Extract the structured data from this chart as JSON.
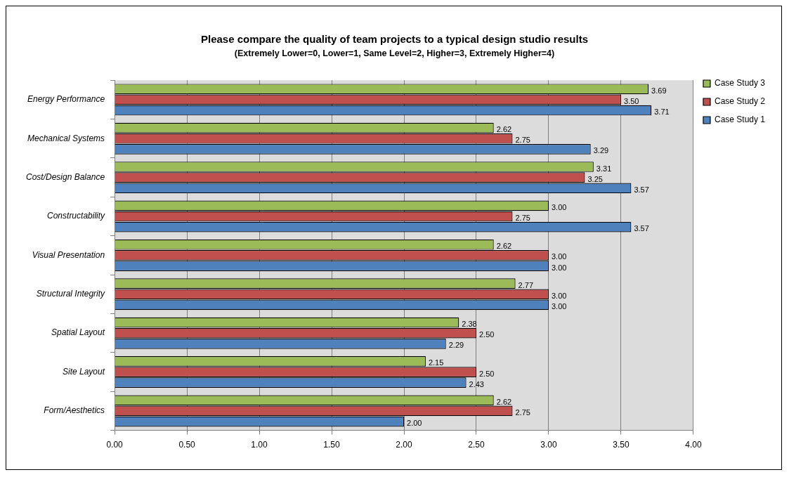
{
  "chart_data": {
    "type": "bar",
    "orientation": "horizontal",
    "title": "Please compare the quality of team projects to a typical design studio results",
    "subtitle": "(Extremely Lower=0, Lower=1, Same Level=2, Higher=3, Extremely Higher=4)",
    "categories": [
      "Energy Performance",
      "Mechanical Systems",
      "Cost/Design Balance",
      "Constructability",
      "Visual Presentation",
      "Structural Integrity",
      "Spatial Layout",
      "Site Layout",
      "Form/Aesthetics"
    ],
    "series": [
      {
        "name": "Case Study 3",
        "color": "#9bbb59",
        "values": [
          3.69,
          2.62,
          3.31,
          3.0,
          2.62,
          2.77,
          2.38,
          2.15,
          2.62
        ],
        "value_labels": [
          "3.69",
          "2.62",
          "3.31",
          "3.00",
          "2.62",
          "2.77",
          "2.38",
          "2.15",
          "2.62"
        ]
      },
      {
        "name": "Case Study 2",
        "color": "#c0504d",
        "values": [
          3.5,
          2.75,
          3.25,
          2.75,
          3.0,
          3.0,
          2.5,
          2.5,
          2.75
        ],
        "value_labels": [
          "3.50",
          "2.75",
          "3.25",
          "2.75",
          "3.00",
          "3.00",
          "2.50",
          "2.50",
          "2.75"
        ]
      },
      {
        "name": "Case Study 1",
        "color": "#4f81bd",
        "values": [
          3.71,
          3.29,
          3.57,
          3.57,
          3.0,
          3.0,
          2.29,
          2.43,
          2.0
        ],
        "value_labels": [
          "3.71",
          "3.29",
          "3.57",
          "3.57",
          "3.00",
          "3.00",
          "2.29",
          "2.43",
          "2.00"
        ]
      }
    ],
    "xlim": [
      0,
      4
    ],
    "xticks": [
      {
        "value": 0,
        "label": "0.00"
      },
      {
        "value": 0.5,
        "label": "0.50"
      },
      {
        "value": 1,
        "label": "1.00"
      },
      {
        "value": 1.5,
        "label": "1.50"
      },
      {
        "value": 2,
        "label": "2.00"
      },
      {
        "value": 2.5,
        "label": "2.50"
      },
      {
        "value": 3,
        "label": "3.00"
      },
      {
        "value": 3.5,
        "label": "3.50"
      },
      {
        "value": 4,
        "label": "4.00"
      }
    ],
    "grid": "x",
    "legend": "right"
  }
}
